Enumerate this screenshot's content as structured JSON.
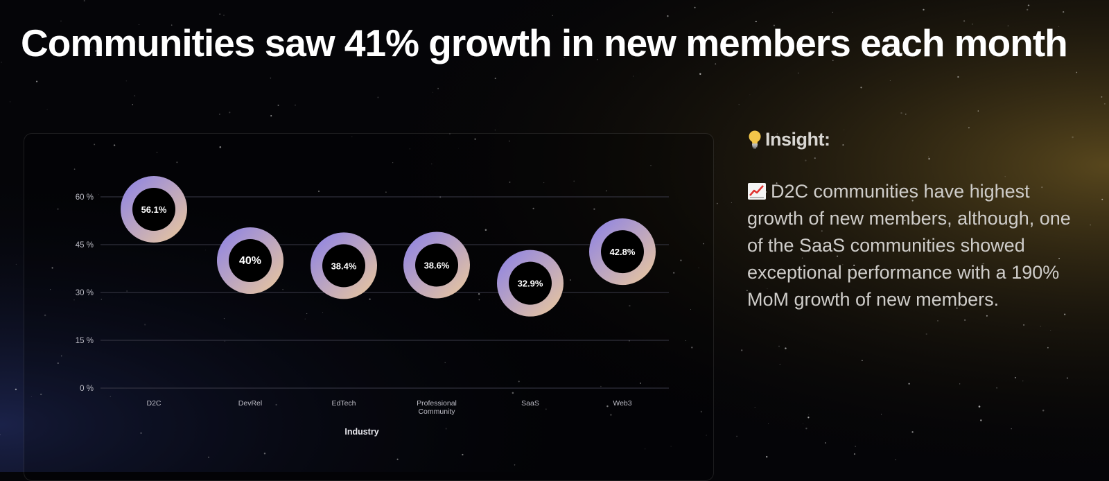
{
  "title": "Communities saw 41% growth in new members each month",
  "insight": {
    "heading": "Insight:",
    "icon": "lightbulb-icon",
    "bullet_icon": "chart-increasing-icon",
    "body": "D2C communities have highest growth of new members, although, one of the SaaS communities showed exceptional performance with a 190% MoM growth of new members."
  },
  "chart_data": {
    "type": "scatter",
    "marker": "donut",
    "categories": [
      "D2C",
      "DevRel",
      "EdTech",
      "Professional Community",
      "SaaS",
      "Web3"
    ],
    "values": [
      56.1,
      40,
      38.4,
      38.6,
      32.9,
      42.8
    ],
    "data_labels": [
      "56.1%",
      "40%",
      "38.4%",
      "38.6%",
      "32.9%",
      "42.8%"
    ],
    "xlabel": "Industry",
    "ylabel": "",
    "ylim": [
      0,
      60
    ],
    "yticks": [
      0,
      15,
      30,
      45,
      60
    ],
    "ytick_labels": [
      "0 %",
      "15 %",
      "30 %",
      "45 %",
      "60 %"
    ],
    "grid": true,
    "colors": {
      "gradient_start": "#8a80e8",
      "gradient_end": "#ecc99a",
      "grid": "#3a3a48",
      "tick_text": "#bdbdc6"
    }
  }
}
